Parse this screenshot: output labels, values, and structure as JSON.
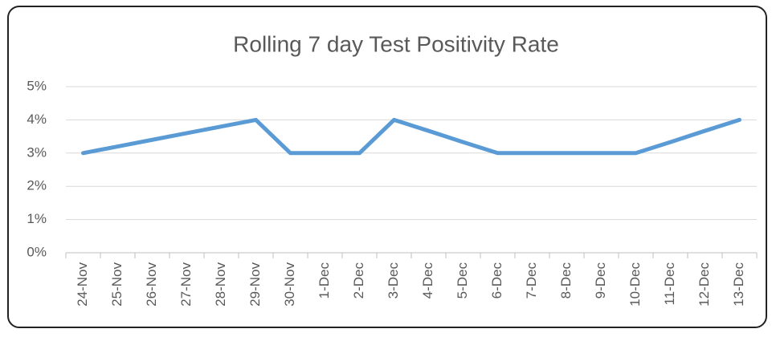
{
  "chart_data": {
    "type": "line",
    "title": "Rolling 7 day Test Positivity Rate",
    "categories": [
      "24-Nov",
      "25-Nov",
      "26-Nov",
      "27-Nov",
      "28-Nov",
      "29-Nov",
      "30-Nov",
      "1-Dec",
      "2-Dec",
      "3-Dec",
      "4-Dec",
      "5-Dec",
      "6-Dec",
      "7-Dec",
      "8-Dec",
      "9-Dec",
      "10-Dec",
      "11-Dec",
      "12-Dec",
      "13-Dec"
    ],
    "series": [
      {
        "color": "#5b9bd5",
        "values": [
          3,
          3.2,
          3.4,
          3.6,
          3.8,
          4,
          3,
          3,
          3,
          4,
          3.67,
          3.33,
          3,
          3,
          3,
          3,
          3,
          3.33,
          3.67,
          4
        ]
      }
    ],
    "ylim": [
      0,
      5
    ],
    "yticks": [
      {
        "value": 0,
        "label": "0%"
      },
      {
        "value": 1,
        "label": "1%"
      },
      {
        "value": 2,
        "label": "2%"
      },
      {
        "value": 3,
        "label": "3%"
      },
      {
        "value": 4,
        "label": "4%"
      },
      {
        "value": 5,
        "label": "5%"
      }
    ],
    "grid": true
  }
}
